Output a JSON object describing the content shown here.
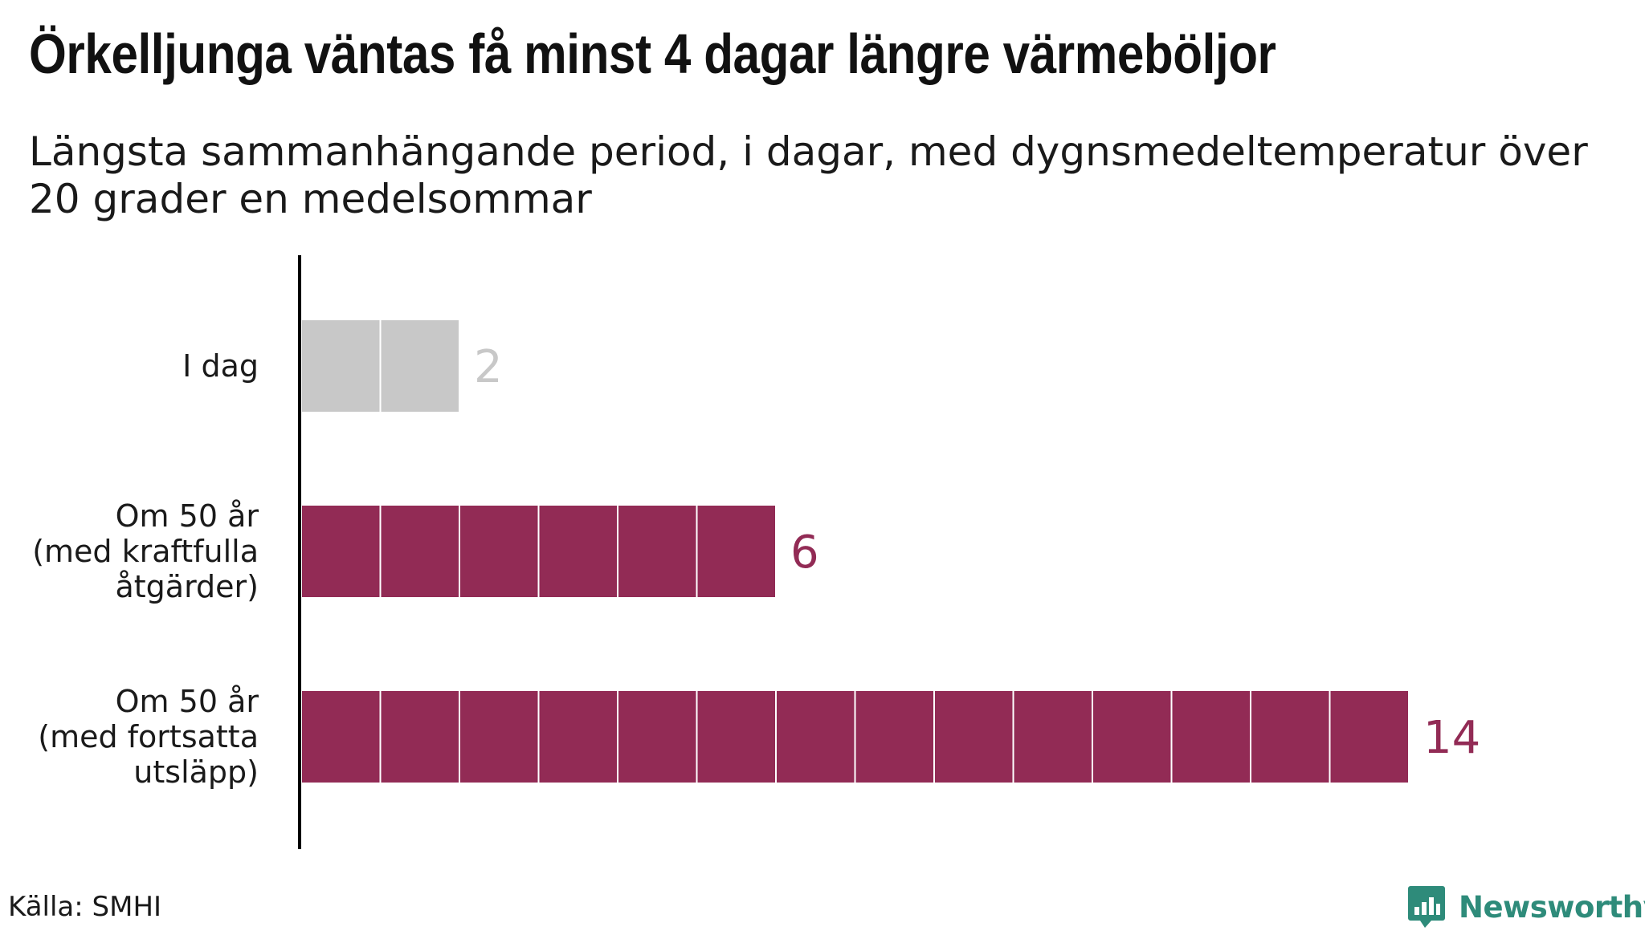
{
  "title": "Örkelljunga väntas få minst 4 dagar längre värmeböljor",
  "subtitle": "Längsta sammanhängande period, i dagar, med dygnsmedeltemperatur över 20 grader en medelsommar",
  "source": "Källa: SMHI",
  "brand": {
    "name": "Newsworthy",
    "logo_icon": "bar-chart-speech-bubble-icon",
    "color": "#2e8b7a"
  },
  "colors": {
    "current": "#c8c8c8",
    "future": "#922b55",
    "current_label": "#c8c8c8",
    "future_label": "#922b55",
    "axis": "#000000"
  },
  "chart_data": {
    "type": "bar",
    "orientation": "horizontal",
    "unit": "dagar",
    "categories": [
      [
        "I dag"
      ],
      [
        "Om 50 år",
        "(med kraftfulla",
        "åtgärder)"
      ],
      [
        "Om 50 år",
        "(med fortsatta",
        "utsläpp)"
      ]
    ],
    "values": [
      2,
      6,
      14
    ],
    "value_labels": [
      "2",
      "6",
      "14"
    ],
    "bar_colors": [
      "#c8c8c8",
      "#922b55",
      "#922b55"
    ],
    "segmented_per_day": true,
    "xlim": [
      0,
      14
    ]
  }
}
